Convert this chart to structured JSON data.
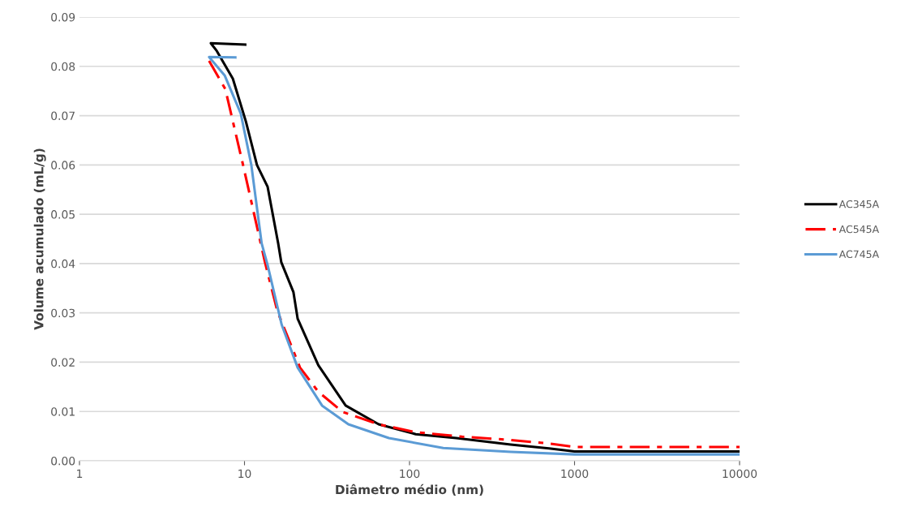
{
  "chart_data": {
    "type": "line",
    "xlabel": "Diâmetro médio (nm)",
    "ylabel": "Volume acumulado (mL/g)",
    "log": "x",
    "xlim": [
      1,
      10000
    ],
    "xticks": [
      1,
      10,
      100,
      1000,
      10000
    ],
    "ylim": [
      0,
      0.09
    ],
    "yticks": [
      {
        "value": 0,
        "label": "0.00"
      },
      {
        "value": 0.01,
        "label": "0.01"
      },
      {
        "value": 0.02,
        "label": "0.02"
      },
      {
        "value": 0.03,
        "label": "0.03"
      },
      {
        "value": 0.04,
        "label": "0.04"
      },
      {
        "value": 0.05,
        "label": "0.05"
      },
      {
        "value": 0.06,
        "label": "0.06"
      },
      {
        "value": 0.07,
        "label": "0.07"
      },
      {
        "value": 0.08,
        "label": "0.08"
      },
      {
        "value": 0.09,
        "label": "0.09"
      }
    ],
    "grid": "y",
    "legend": "right",
    "marker": "none",
    "series": [
      {
        "name": "AC345A",
        "color": "#000000",
        "line_style": "solid",
        "x": [
          10.1,
          6.25,
          6.8,
          8.5,
          10.2,
          11.9,
          13.8,
          16.0,
          16.7,
          19.8,
          21,
          28,
          41,
          65,
          109,
          192,
          410,
          700,
          1000,
          10000
        ],
        "values": [
          0.0844,
          0.0847,
          0.0831,
          0.0775,
          0.0688,
          0.06,
          0.0556,
          0.0441,
          0.0403,
          0.0342,
          0.0288,
          0.0194,
          0.0112,
          0.0074,
          0.0054,
          0.0046,
          0.0033,
          0.0025,
          0.0019,
          0.0019
        ]
      },
      {
        "name": "AC545A",
        "color": "#ff0000",
        "line_style": "dashed",
        "x": [
          6.1,
          7.65,
          9.8,
          13.3,
          15.8,
          21.7,
          28,
          39.4,
          65,
          109,
          208,
          380,
          700,
          1000,
          10000
        ],
        "values": [
          0.0811,
          0.0754,
          0.06,
          0.0403,
          0.0304,
          0.0189,
          0.014,
          0.0099,
          0.0074,
          0.0058,
          0.0049,
          0.0043,
          0.0035,
          0.0028,
          0.0028
        ]
      },
      {
        "name": "AC745A",
        "color": "#5b9bd5",
        "line_style": "solid",
        "x": [
          8.8,
          6.1,
          7.6,
          9.5,
          11,
          12.7,
          13.8,
          16.8,
          21,
          29.5,
          42.6,
          75,
          160,
          410,
          1000,
          10000
        ],
        "values": [
          0.0818,
          0.0819,
          0.0781,
          0.0704,
          0.06,
          0.0441,
          0.0397,
          0.0276,
          0.0189,
          0.0112,
          0.0074,
          0.0046,
          0.0026,
          0.0018,
          0.0013,
          0.0013
        ]
      }
    ]
  }
}
